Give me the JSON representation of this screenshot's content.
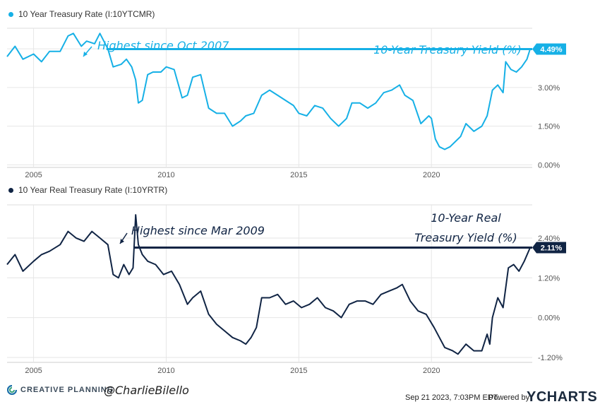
{
  "colors": {
    "yield": "#16b0e6",
    "real": "#102444",
    "grid": "#e6e6e6"
  },
  "footer": {
    "brand": "CREATIVE PLANNING",
    "handle": "@CharlieBilello",
    "date": "Sep 21 2023, 7:03PM EDT.",
    "powered": "Powered by",
    "ycharts": "YCHARTS"
  },
  "chart_data": [
    {
      "type": "line",
      "legend": "10 Year Treasury Rate (I:10YTCMR)",
      "series_name": "10-Year Treasury Yield (%)",
      "annotation": "Highest since Oct 2007",
      "current_label": "4.49%",
      "current_value": 4.49,
      "x_range": [
        2004.0,
        2023.8
      ],
      "ylim": [
        -0.1,
        5.3
      ],
      "y_ticks": [
        0.0,
        1.5,
        3.0,
        4.5
      ],
      "y_tick_labels": [
        "0.00%",
        "1.50%",
        "3.00%",
        "4.50%"
      ],
      "x_ticks": [
        2005,
        2010,
        2015,
        2020
      ],
      "x_tick_labels": [
        "2005",
        "2010",
        "2015",
        "2020"
      ],
      "reference_start": 2007.75,
      "x": [
        2004.0,
        2004.3,
        2004.6,
        2005.0,
        2005.3,
        2005.6,
        2006.0,
        2006.3,
        2006.5,
        2006.8,
        2007.0,
        2007.3,
        2007.5,
        2007.8,
        2008.0,
        2008.3,
        2008.5,
        2008.7,
        2008.85,
        2008.95,
        2009.1,
        2009.3,
        2009.5,
        2009.8,
        2010.0,
        2010.3,
        2010.6,
        2010.8,
        2011.0,
        2011.3,
        2011.6,
        2011.9,
        2012.2,
        2012.5,
        2012.8,
        2013.0,
        2013.3,
        2013.6,
        2013.9,
        2014.2,
        2014.5,
        2014.8,
        2015.0,
        2015.3,
        2015.6,
        2015.9,
        2016.2,
        2016.5,
        2016.8,
        2017.0,
        2017.3,
        2017.6,
        2017.9,
        2018.2,
        2018.5,
        2018.8,
        2019.0,
        2019.3,
        2019.6,
        2019.9,
        2020.0,
        2020.15,
        2020.3,
        2020.5,
        2020.7,
        2020.9,
        2021.1,
        2021.3,
        2021.6,
        2021.9,
        2022.1,
        2022.3,
        2022.5,
        2022.7,
        2022.8,
        2023.0,
        2023.2,
        2023.4,
        2023.6,
        2023.72
      ],
      "values": [
        4.2,
        4.6,
        4.1,
        4.3,
        4.0,
        4.4,
        4.4,
        5.0,
        5.1,
        4.6,
        4.8,
        4.7,
        5.1,
        4.5,
        3.8,
        3.9,
        4.1,
        3.8,
        3.3,
        2.4,
        2.5,
        3.5,
        3.6,
        3.6,
        3.8,
        3.7,
        2.6,
        2.7,
        3.4,
        3.5,
        2.2,
        2.0,
        2.0,
        1.5,
        1.7,
        1.9,
        2.0,
        2.7,
        2.9,
        2.7,
        2.5,
        2.3,
        2.0,
        1.9,
        2.3,
        2.2,
        1.8,
        1.5,
        1.8,
        2.4,
        2.4,
        2.2,
        2.4,
        2.8,
        2.9,
        3.1,
        2.7,
        2.5,
        1.6,
        1.9,
        1.8,
        1.0,
        0.7,
        0.6,
        0.7,
        0.9,
        1.1,
        1.6,
        1.3,
        1.5,
        1.9,
        2.9,
        3.1,
        2.8,
        4.0,
        3.7,
        3.6,
        3.8,
        4.1,
        4.49
      ]
    },
    {
      "type": "line",
      "legend": "10 Year Real Treasury Rate (I:10YRTR)",
      "series_name": "10-Year Real Treasury Yield (%)",
      "series_name_lines": [
        "10-Year Real",
        "Treasury Yield (%)"
      ],
      "annotation": "Highest since Mar 2009",
      "current_label": "2.11%",
      "current_value": 2.11,
      "x_range": [
        2004.0,
        2023.8
      ],
      "ylim": [
        -1.35,
        3.4
      ],
      "y_ticks": [
        -1.2,
        0.0,
        1.2,
        2.4
      ],
      "y_tick_labels": [
        "-1.20%",
        "0.00%",
        "1.20%",
        "2.40%"
      ],
      "x_ticks": [
        2005,
        2010,
        2015,
        2020
      ],
      "x_tick_labels": [
        "2005",
        "2010",
        "2015",
        "2020"
      ],
      "reference_start": 2008.8,
      "x": [
        2004.0,
        2004.3,
        2004.6,
        2005.0,
        2005.3,
        2005.6,
        2006.0,
        2006.3,
        2006.6,
        2006.9,
        2007.2,
        2007.5,
        2007.8,
        2008.0,
        2008.2,
        2008.4,
        2008.6,
        2008.75,
        2008.85,
        2008.95,
        2009.1,
        2009.3,
        2009.6,
        2009.9,
        2010.2,
        2010.5,
        2010.8,
        2011.0,
        2011.3,
        2011.6,
        2011.9,
        2012.2,
        2012.5,
        2012.8,
        2013.0,
        2013.2,
        2013.4,
        2013.6,
        2013.9,
        2014.2,
        2014.5,
        2014.8,
        2015.1,
        2015.4,
        2015.7,
        2016.0,
        2016.3,
        2016.6,
        2016.9,
        2017.2,
        2017.5,
        2017.8,
        2018.1,
        2018.4,
        2018.7,
        2018.9,
        2019.2,
        2019.5,
        2019.8,
        2020.1,
        2020.3,
        2020.5,
        2020.8,
        2021.0,
        2021.3,
        2021.6,
        2021.9,
        2022.1,
        2022.2,
        2022.3,
        2022.5,
        2022.7,
        2022.9,
        2023.1,
        2023.3,
        2023.5,
        2023.72
      ],
      "values": [
        1.6,
        1.9,
        1.4,
        1.7,
        1.9,
        2.0,
        2.2,
        2.6,
        2.4,
        2.3,
        2.6,
        2.4,
        2.2,
        1.3,
        1.2,
        1.6,
        1.3,
        1.5,
        3.1,
        2.2,
        1.9,
        1.7,
        1.6,
        1.3,
        1.4,
        1.0,
        0.4,
        0.6,
        0.8,
        0.1,
        -0.2,
        -0.4,
        -0.6,
        -0.7,
        -0.8,
        -0.6,
        -0.3,
        0.6,
        0.6,
        0.7,
        0.4,
        0.5,
        0.3,
        0.4,
        0.6,
        0.3,
        0.2,
        0.0,
        0.4,
        0.5,
        0.5,
        0.4,
        0.7,
        0.8,
        0.9,
        1.0,
        0.5,
        0.2,
        0.1,
        -0.3,
        -0.6,
        -0.9,
        -1.0,
        -1.1,
        -0.8,
        -1.0,
        -1.0,
        -0.5,
        -0.8,
        0.0,
        0.6,
        0.3,
        1.5,
        1.6,
        1.4,
        1.7,
        2.11
      ]
    }
  ]
}
